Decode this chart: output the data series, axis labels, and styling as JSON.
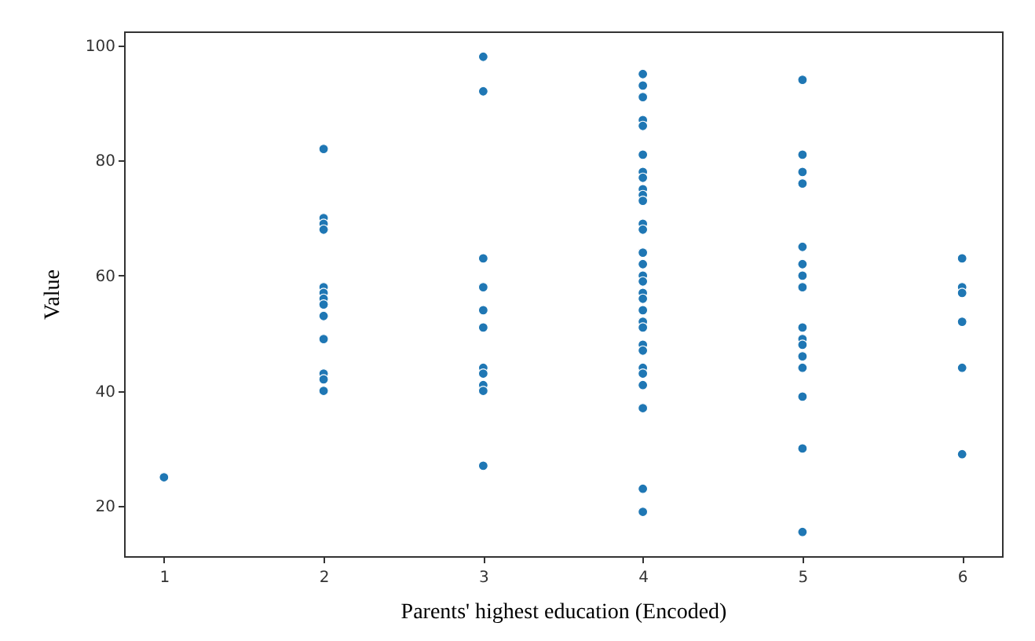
{
  "chart_data": {
    "type": "scatter",
    "xlabel": "Parents' highest education (Encoded)",
    "ylabel": "Value",
    "xlim": [
      0.75,
      6.25
    ],
    "xticks": [
      1,
      2,
      3,
      4,
      5,
      6
    ],
    "ylim": [
      11.3,
      102.4
    ],
    "yticks": [
      20,
      40,
      60,
      80,
      100
    ],
    "grid": false,
    "marker": "circle",
    "series": [
      {
        "color": "#1f77b4",
        "x": [
          1,
          2,
          2,
          2,
          2,
          2,
          2,
          2,
          2,
          2,
          2,
          2,
          2,
          2,
          3,
          3,
          3,
          3,
          3,
          3,
          3,
          3,
          3,
          3,
          3,
          4,
          4,
          4,
          4,
          4,
          4,
          4,
          4,
          4,
          4,
          4,
          4,
          4,
          4,
          4,
          4,
          4,
          4,
          4,
          4,
          4,
          4,
          4,
          4,
          4,
          4,
          4,
          4,
          4,
          4,
          5,
          5,
          5,
          5,
          5,
          5,
          5,
          5,
          5,
          5,
          5,
          5,
          5,
          5,
          5,
          5,
          6,
          6,
          6,
          6,
          6,
          6
        ],
        "values": [
          25,
          82,
          70,
          69,
          68,
          58,
          57,
          56,
          55,
          53,
          49,
          43,
          42,
          40,
          98,
          92,
          63,
          58,
          54,
          51,
          44,
          43,
          41,
          40,
          27,
          95,
          93,
          91,
          87,
          86,
          81,
          78,
          77,
          75,
          74,
          73,
          69,
          68,
          64,
          62,
          60,
          59,
          57,
          56,
          54,
          52,
          51,
          48,
          47,
          44,
          43,
          41,
          37,
          23,
          19,
          94,
          81,
          78,
          76,
          65,
          62,
          60,
          58,
          51,
          49,
          48,
          46,
          44,
          39,
          30,
          15.5,
          63,
          58,
          57,
          52,
          44,
          29
        ]
      }
    ]
  }
}
